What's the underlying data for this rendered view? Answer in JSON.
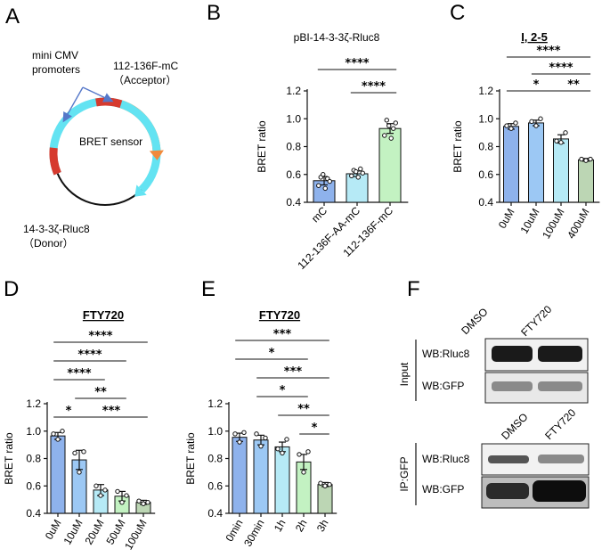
{
  "panels": {
    "A": "A",
    "B": "B",
    "C": "C",
    "D": "D",
    "E": "E",
    "F": "F"
  },
  "diagram": {
    "promoter_label_1": "mini CMV",
    "promoter_label_2": "promoters",
    "acceptor_label_1": "112-136F-mC",
    "acceptor_label_2": "（Acceptor）",
    "center_label": "BRET sensor",
    "donor_label_1": "14-3-3ζ-Rluc8",
    "donor_label_2": "（Donor）",
    "colors": {
      "promoter": "#d63a2e",
      "acceptor": "#f08a3c",
      "donor": "#63e3f2",
      "backbone": "#111111",
      "arrow": "#5578c9"
    }
  },
  "western": {
    "lane_labels": [
      "DMSO",
      "FTY720"
    ],
    "top_group": "Input",
    "bottom_group": "IP:GFP",
    "top_rows": [
      "WB:Rluc8",
      "WB:GFP"
    ],
    "bottom_rows": [
      "WB:Rluc8",
      "WB:GFP"
    ]
  },
  "chart_data": [
    {
      "id": "B",
      "type": "bar",
      "title": "pBI-14-3-3ζ-Rluc8",
      "ylabel": "BRET ratio",
      "ylim": [
        0.4,
        1.2
      ],
      "yticks": [
        "0.4",
        "0.6",
        "0.8",
        "1.0",
        "1.2"
      ],
      "categories": [
        "mC",
        "112-136F-AA-mC",
        "112-136F-mC"
      ],
      "values": [
        0.555,
        0.605,
        0.93
      ],
      "errors": [
        0.03,
        0.02,
        0.035
      ],
      "colors": [
        "#8eb2ec",
        "#b6eaf6",
        "#c3f2c2"
      ],
      "points": [
        [
          0.52,
          0.58,
          0.6,
          0.5,
          0.57,
          0.55
        ],
        [
          0.59,
          0.63,
          0.62,
          0.58,
          0.64,
          0.61
        ],
        [
          0.88,
          0.99,
          0.95,
          0.86,
          0.93,
          0.97
        ]
      ],
      "sig": [
        {
          "from": 0,
          "to": 2,
          "label": "****"
        },
        {
          "from": 1,
          "to": 2,
          "label": "****"
        }
      ]
    },
    {
      "id": "C",
      "type": "bar",
      "title": "I, 2-5",
      "ylabel": "BRET ratio",
      "ylim": [
        0.4,
        1.2
      ],
      "yticks": [
        "0.4",
        "0.6",
        "0.8",
        "1.0",
        "1.2"
      ],
      "categories": [
        "0uM",
        "10uM",
        "100uM",
        "400uM"
      ],
      "values": [
        0.945,
        0.97,
        0.855,
        0.705
      ],
      "errors": [
        0.02,
        0.02,
        0.03,
        0.01
      ],
      "colors": [
        "#8eb2ec",
        "#9cc8f4",
        "#b6eaf6",
        "#bcd6b4"
      ],
      "points": [
        [
          0.95,
          0.93,
          0.97
        ],
        [
          0.98,
          0.95,
          1.0
        ],
        [
          0.84,
          0.83,
          0.9
        ],
        [
          0.71,
          0.7,
          0.71
        ]
      ],
      "sig": [
        {
          "from": 0,
          "to": 3,
          "label": "****"
        },
        {
          "from": 1,
          "to": 3,
          "label": "****"
        },
        {
          "from": 0,
          "to": 2,
          "label": "*"
        },
        {
          "from": 2,
          "to": 3,
          "label": "**"
        }
      ]
    },
    {
      "id": "D",
      "type": "bar",
      "title": "FTY720",
      "ylabel": "BRET ratio",
      "ylim": [
        0.4,
        1.2
      ],
      "yticks": [
        "0.4",
        "0.6",
        "0.8",
        "1.0",
        "1.2"
      ],
      "categories": [
        "0uM",
        "10uM",
        "20uM",
        "50uM",
        "100uM"
      ],
      "values": [
        0.965,
        0.79,
        0.57,
        0.525,
        0.48
      ],
      "errors": [
        0.025,
        0.07,
        0.04,
        0.035,
        0.015
      ],
      "colors": [
        "#8eb2ec",
        "#9cc8f4",
        "#b6eaf6",
        "#c3f2c2",
        "#bcd6b4"
      ],
      "points": [
        [
          0.98,
          0.94,
          1.0
        ],
        [
          0.84,
          0.7,
          0.85
        ],
        [
          0.6,
          0.53,
          0.57
        ],
        [
          0.56,
          0.48,
          0.53
        ],
        [
          0.49,
          0.47,
          0.48
        ]
      ],
      "sig": [
        {
          "from": 0,
          "to": 4,
          "label": "****"
        },
        {
          "from": 0,
          "to": 3,
          "label": "****"
        },
        {
          "from": 0,
          "to": 2,
          "label": "****"
        },
        {
          "from": 1,
          "to": 3,
          "label": "**"
        },
        {
          "from": 0,
          "to": 1,
          "label": "*"
        },
        {
          "from": 1,
          "to": 4,
          "label": "***"
        }
      ]
    },
    {
      "id": "E",
      "type": "bar",
      "title": "FTY720",
      "ylabel": "BRET ratio",
      "ylim": [
        0.4,
        1.2
      ],
      "yticks": [
        "0.4",
        "0.6",
        "0.8",
        "1.0",
        "1.2"
      ],
      "categories": [
        "0min",
        "30min",
        "1h",
        "2h",
        "3h"
      ],
      "values": [
        0.955,
        0.935,
        0.885,
        0.775,
        0.61
      ],
      "errors": [
        0.03,
        0.035,
        0.035,
        0.055,
        0.015
      ],
      "colors": [
        "#8eb2ec",
        "#9cc8f4",
        "#b6eaf6",
        "#c3f2c2",
        "#bcd6b4"
      ],
      "points": [
        [
          0.98,
          0.92,
          0.99
        ],
        [
          0.98,
          0.89,
          0.95
        ],
        [
          0.87,
          0.84,
          0.94
        ],
        [
          0.83,
          0.7,
          0.85
        ],
        [
          0.62,
          0.6,
          0.61
        ]
      ],
      "sig": [
        {
          "from": 0,
          "to": 4,
          "label": "***"
        },
        {
          "from": 0,
          "to": 3,
          "label": "*"
        },
        {
          "from": 1,
          "to": 4,
          "label": "***"
        },
        {
          "from": 1,
          "to": 3,
          "label": "*"
        },
        {
          "from": 2,
          "to": 4,
          "label": "**"
        },
        {
          "from": 3,
          "to": 4,
          "label": "*"
        }
      ]
    }
  ]
}
